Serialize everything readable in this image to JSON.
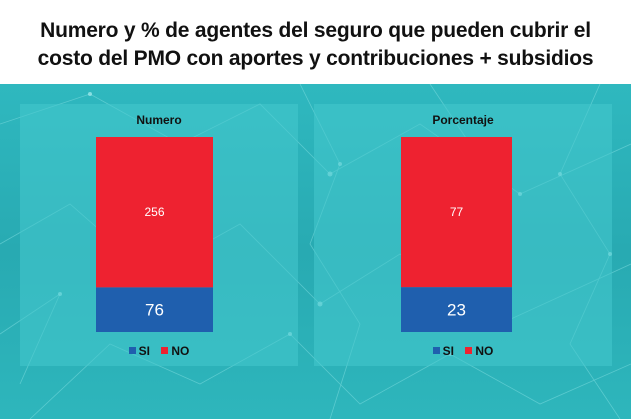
{
  "title": {
    "line1": "Numero y % de agentes del seguro que pueden cubrir el",
    "line2": "costo del PMO con aportes y contribuciones + subsidios"
  },
  "colors": {
    "si": "#1f5fae",
    "no": "#ee2230",
    "background": "#2bb0b7"
  },
  "chart_data": [
    {
      "type": "bar",
      "stacked": true,
      "title": "Numero",
      "categories": [
        ""
      ],
      "series": [
        {
          "name": "SI",
          "values": [
            76
          ]
        },
        {
          "name": "NO",
          "values": [
            256
          ]
        }
      ],
      "ylim": [
        0,
        332
      ],
      "legend": [
        "SI",
        "NO"
      ],
      "legend_position": "bottom"
    },
    {
      "type": "bar",
      "stacked": true,
      "title": "Porcentaje",
      "categories": [
        ""
      ],
      "series": [
        {
          "name": "SI",
          "values": [
            23
          ]
        },
        {
          "name": "NO",
          "values": [
            77
          ]
        }
      ],
      "ylim": [
        0,
        100
      ],
      "legend": [
        "SI",
        "NO"
      ],
      "legend_position": "bottom"
    }
  ]
}
